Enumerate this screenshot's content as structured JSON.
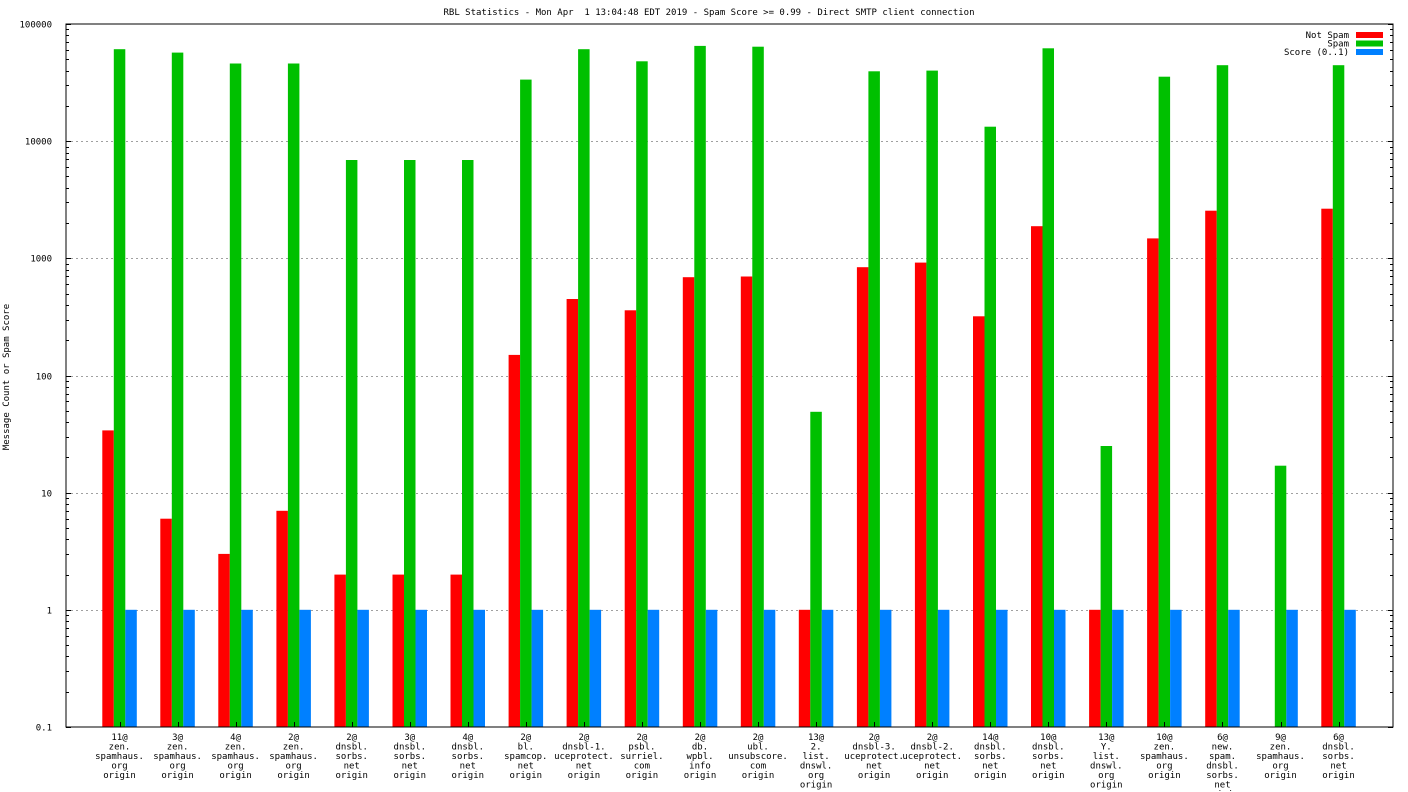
{
  "chart_data": {
    "type": "bar",
    "title": "RBL Statistics - Mon Apr  1 13:04:48 EDT 2019 - Spam Score >= 0.99 - Direct SMTP client connection",
    "xlabel": "",
    "ylabel": "Message Count or Spam Score",
    "yscale": "log",
    "ylim": [
      0.1,
      100000
    ],
    "yticks": [
      {
        "value": 0.1,
        "label": "0.1"
      },
      {
        "value": 1,
        "label": "1"
      },
      {
        "value": 10,
        "label": "10"
      },
      {
        "value": 100,
        "label": "100"
      },
      {
        "value": 1000,
        "label": "1000"
      },
      {
        "value": 10000,
        "label": "10000"
      },
      {
        "value": 100000,
        "label": "100000"
      }
    ],
    "grid": true,
    "legend_position": "top-right",
    "categories": [
      [
        "11@",
        "zen.",
        "spamhaus.",
        "org",
        "origin"
      ],
      [
        "3@",
        "zen.",
        "spamhaus.",
        "org",
        "origin"
      ],
      [
        "4@",
        "zen.",
        "spamhaus.",
        "org",
        "origin"
      ],
      [
        "2@",
        "zen.",
        "spamhaus.",
        "org",
        "origin"
      ],
      [
        "2@",
        "dnsbl.",
        "sorbs.",
        "net",
        "origin"
      ],
      [
        "3@",
        "dnsbl.",
        "sorbs.",
        "net",
        "origin"
      ],
      [
        "4@",
        "dnsbl.",
        "sorbs.",
        "net",
        "origin"
      ],
      [
        "2@",
        "bl.",
        "spamcop.",
        "net",
        "origin"
      ],
      [
        "2@",
        "dnsbl-1.",
        "uceprotect.",
        "net",
        "origin"
      ],
      [
        "2@",
        "psbl.",
        "surriel.",
        "com",
        "origin"
      ],
      [
        "2@",
        "db.",
        "wpbl.",
        "info",
        "origin"
      ],
      [
        "2@",
        "ubl.",
        "unsubscore.",
        "com",
        "origin"
      ],
      [
        "13@",
        "2.",
        "list.",
        "dnswl.",
        "org",
        "origin"
      ],
      [
        "2@",
        "dnsbl-3.",
        "uceprotect.",
        "net",
        "origin"
      ],
      [
        "2@",
        "dnsbl-2.",
        "uceprotect.",
        "net",
        "origin"
      ],
      [
        "14@",
        "dnsbl.",
        "sorbs.",
        "net",
        "origin"
      ],
      [
        "10@",
        "dnsbl.",
        "sorbs.",
        "net",
        "origin"
      ],
      [
        "13@",
        "Y.",
        "list.",
        "dnswl.",
        "org",
        "origin"
      ],
      [
        "10@",
        "zen.",
        "spamhaus.",
        "org",
        "origin"
      ],
      [
        "6@",
        "new.",
        "spam.",
        "dnsbl.",
        "sorbs.",
        "net",
        "origin"
      ],
      [
        "9@",
        "zen.",
        "spamhaus.",
        "org",
        "origin"
      ],
      [
        "6@",
        "dnsbl.",
        "sorbs.",
        "net",
        "origin"
      ]
    ],
    "series": [
      {
        "name": "Not Spam",
        "color": "#ff0000",
        "values": [
          34,
          6,
          3,
          7,
          2,
          2,
          2,
          150,
          450,
          360,
          690,
          700,
          1,
          840,
          920,
          320,
          1880,
          1,
          1480,
          2550,
          null,
          2650
        ]
      },
      {
        "name": "Spam",
        "color": "#00c000",
        "values": [
          61000,
          57000,
          46000,
          46000,
          6900,
          6900,
          6900,
          33500,
          61000,
          48000,
          65000,
          64000,
          49,
          39500,
          40000,
          13300,
          62000,
          25,
          35500,
          44500,
          17,
          44500
        ]
      },
      {
        "name": "Score (0..1)",
        "color": "#0080ff",
        "values": [
          1,
          1,
          1,
          1,
          1,
          1,
          1,
          1,
          1,
          1,
          1,
          1,
          1,
          1,
          1,
          1,
          1,
          1,
          1,
          1,
          1,
          1
        ]
      }
    ]
  }
}
